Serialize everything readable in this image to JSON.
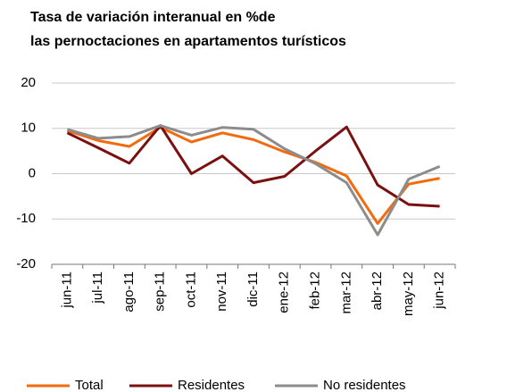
{
  "chart_data": {
    "type": "line",
    "title": [
      "Tasa de variación interanual en %de",
      "las pernoctaciones en apartamentos turísticos"
    ],
    "categories": [
      "jun-11",
      "jul-11",
      "ago-11",
      "sep-11",
      "oct-11",
      "nov-11",
      "dic-11",
      "ene-12",
      "feb-12",
      "mar-12",
      "abr-12",
      "may-12",
      "jun-12"
    ],
    "series": [
      {
        "name": "Total",
        "color": "#f26b0f",
        "values": [
          9.5,
          7.3,
          6,
          10.2,
          7,
          9,
          7.5,
          4.8,
          2.5,
          -0.5,
          -11,
          -2.3,
          -1
        ]
      },
      {
        "name": "Residentes",
        "color": "#7b1010",
        "values": [
          9,
          5.7,
          2.3,
          10.6,
          0,
          3.9,
          -2,
          -0.6,
          5,
          10.3,
          -2.5,
          -6.8,
          -7.2
        ]
      },
      {
        "name": "No residentes",
        "color": "#8c8c8c",
        "values": [
          9.8,
          7.8,
          8.2,
          10.6,
          8.5,
          10.2,
          9.8,
          5.5,
          2.2,
          -2,
          -13.5,
          -1.2,
          1.6
        ]
      }
    ],
    "ylim": [
      -20,
      20
    ],
    "yticks": [
      -20,
      -10,
      0,
      10,
      20
    ],
    "grid": true,
    "legend": "bottom"
  }
}
